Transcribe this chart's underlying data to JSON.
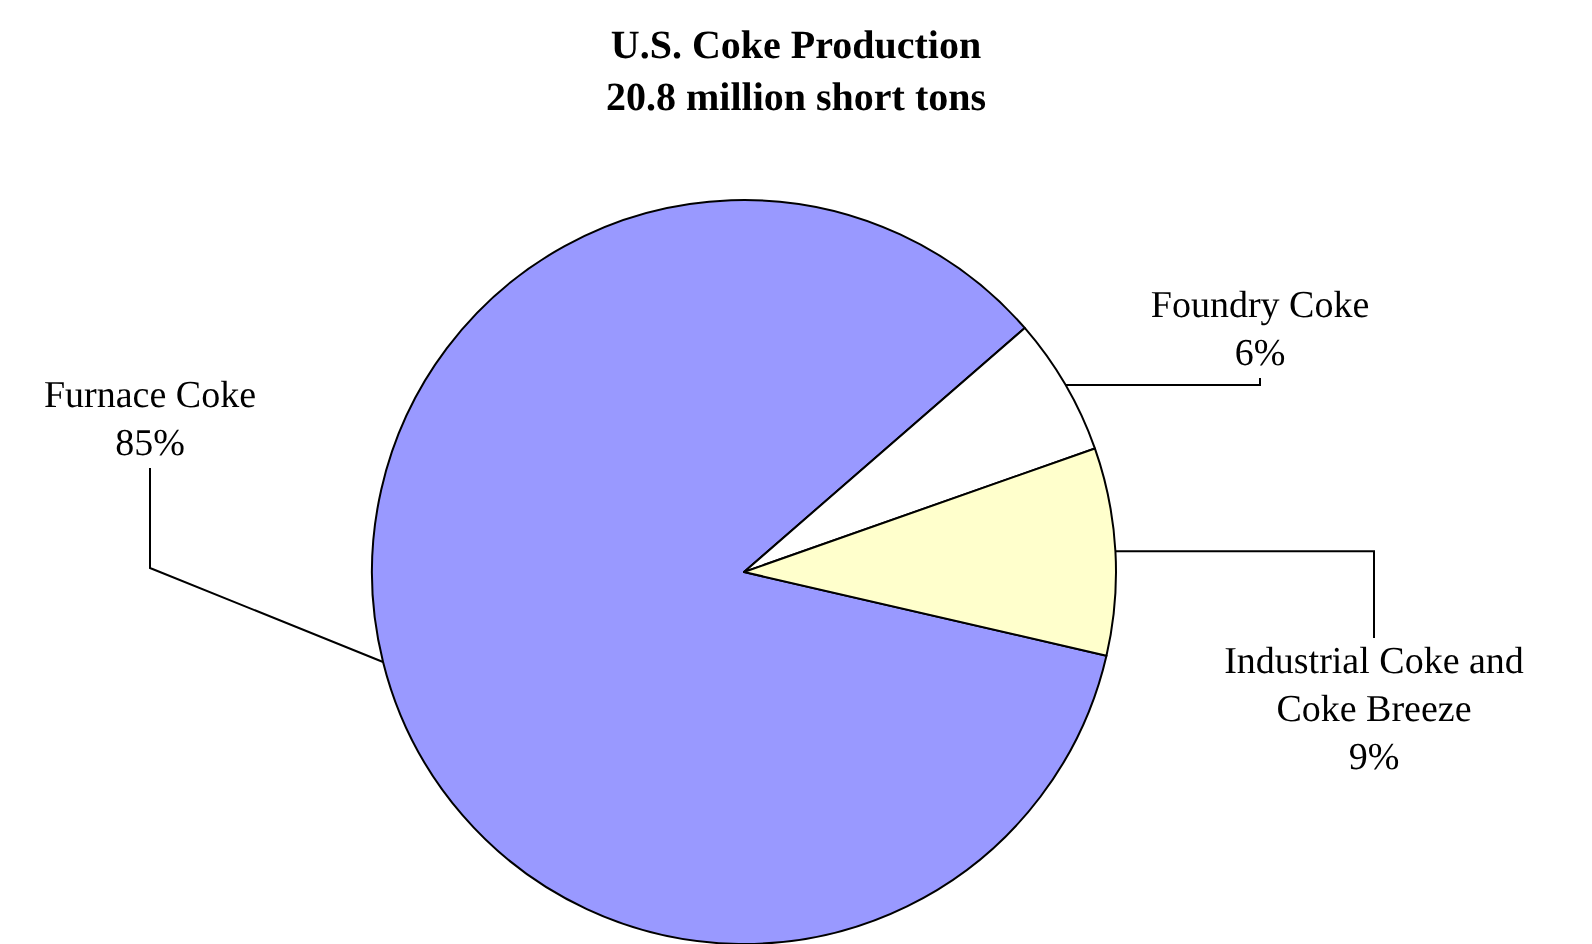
{
  "chart_data": {
    "type": "pie",
    "title": "U.S. Coke Production",
    "subtitle": "20.8 million short tons",
    "categories": [
      "Furnace Coke",
      "Foundry Coke",
      "Industrial Coke and Coke Breeze"
    ],
    "values": [
      85,
      6,
      9
    ],
    "value_labels": [
      "85%",
      "6%",
      "9%"
    ],
    "colors": [
      "#9999ff",
      "#ffffff",
      "#ffffcc"
    ],
    "legend": false
  }
}
